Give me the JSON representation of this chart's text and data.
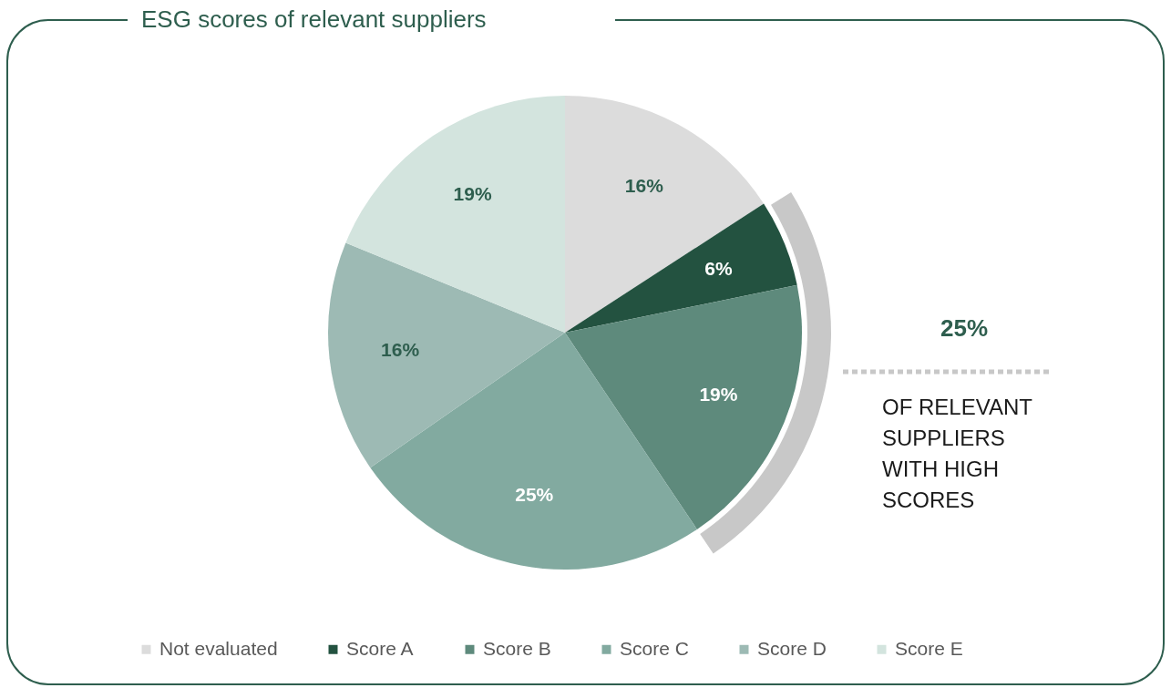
{
  "chart_data": {
    "type": "pie",
    "title": "ESG scores of relevant suppliers",
    "categories": [
      "Not evaluated",
      "Score A",
      "Score B",
      "Score C",
      "Score D",
      "Score E"
    ],
    "values": [
      16,
      6,
      19,
      25,
      16,
      19
    ],
    "colors": [
      "#dcdcdc",
      "#235240",
      "#5e8a7c",
      "#82aaa0",
      "#9dbab4",
      "#d3e4de"
    ],
    "value_labels": [
      "16%",
      "6%",
      "19%",
      "25%",
      "16%",
      "19%"
    ],
    "legend": "bottom",
    "annotations": [
      "25%",
      "OF RELEVANT SUPPLIERS WITH HIGH SCORES"
    ]
  }
}
